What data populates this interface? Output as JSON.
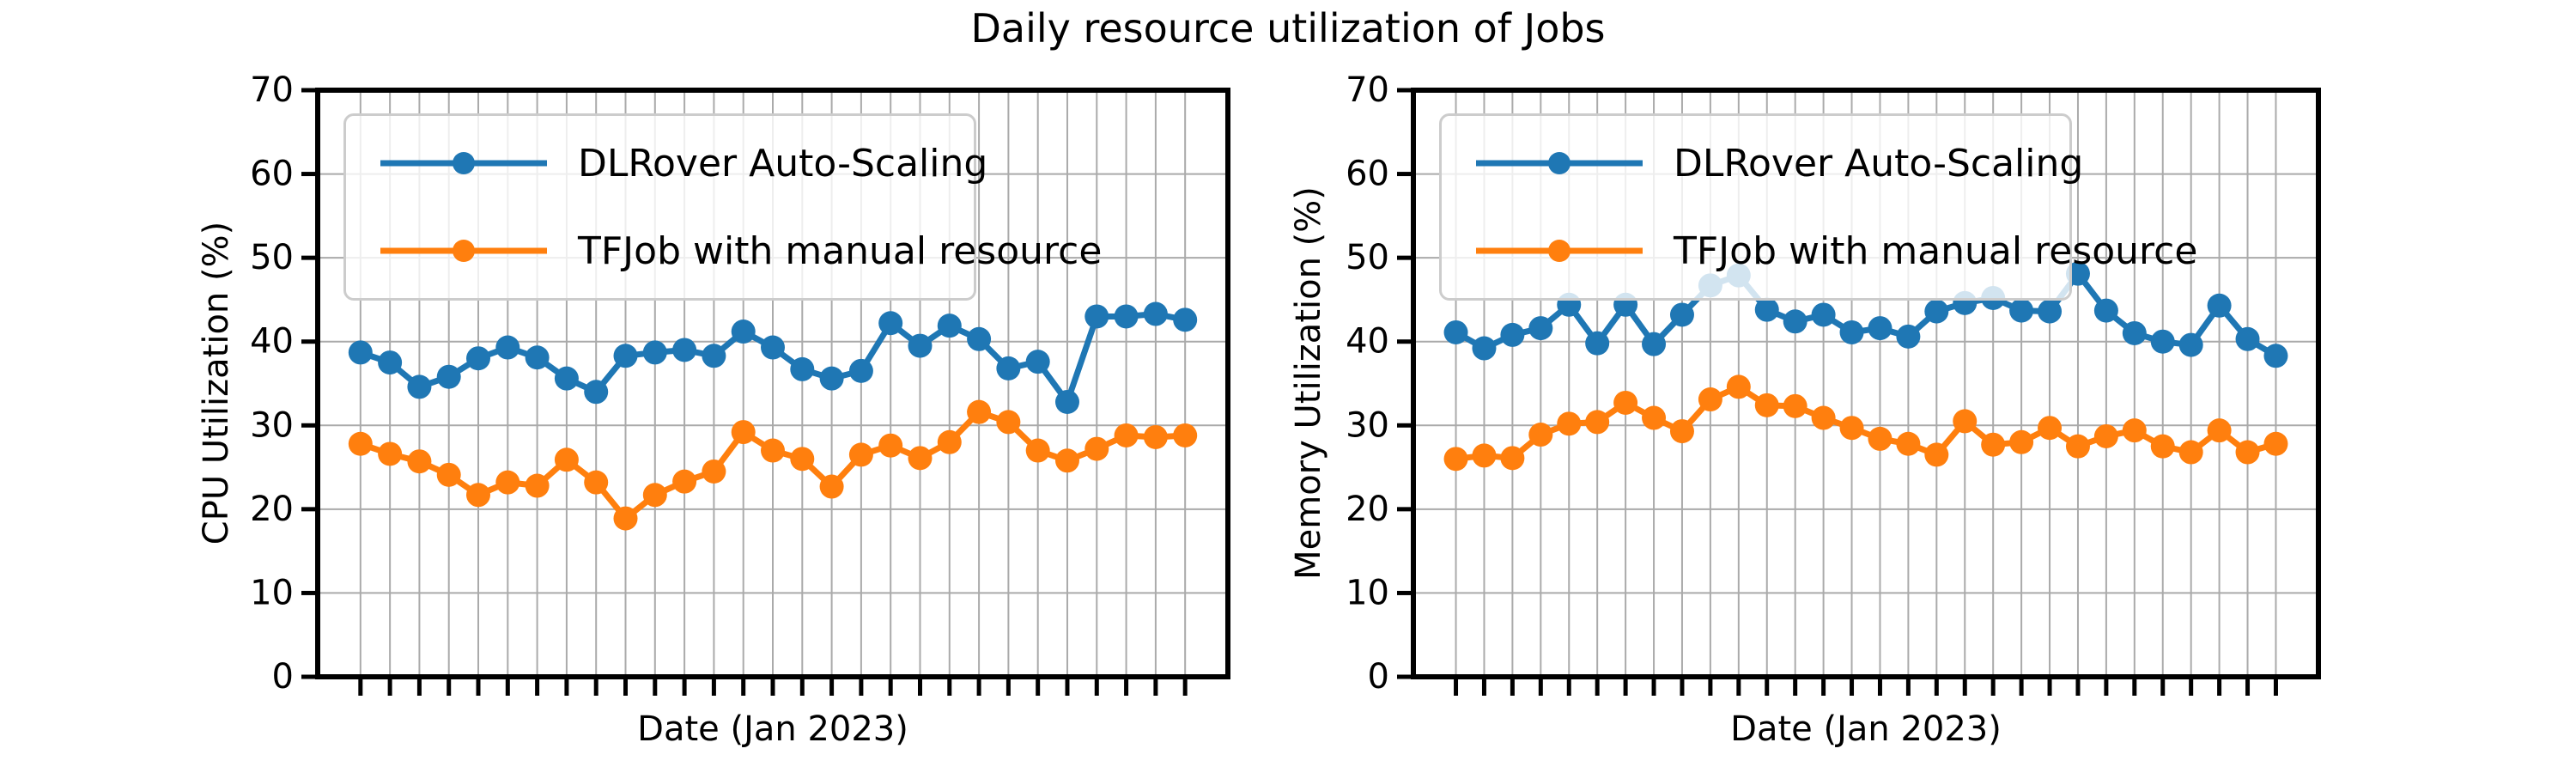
{
  "title": "Daily resource utilization of Jobs",
  "colors": {
    "auto_scaling": "#1f77b4",
    "tfjob": "#ff7f0e",
    "grid": "#aaaaaa",
    "spine": "#000000",
    "legend_border": "#cccccc"
  },
  "chart_data": [
    {
      "type": "line",
      "xlabel": "Date (Jan 2023)",
      "ylabel": "CPU Utilization (%)",
      "ylim": [
        0,
        70
      ],
      "yticks": [
        0,
        10,
        20,
        30,
        40,
        50,
        60,
        70
      ],
      "x_days": [
        1,
        2,
        3,
        4,
        5,
        6,
        7,
        8,
        9,
        10,
        11,
        12,
        13,
        14,
        15,
        16,
        17,
        18,
        19,
        20,
        21,
        22,
        23,
        24,
        25,
        26,
        27,
        28,
        29
      ],
      "grid": true,
      "legend_position": "upper left",
      "series": [
        {
          "name": "DLRover Auto-Scaling",
          "color": "#1f77b4",
          "values": [
            38.7,
            37.5,
            34.6,
            35.8,
            38.0,
            39.3,
            38.1,
            35.6,
            34.0,
            38.3,
            38.7,
            39.0,
            38.3,
            41.2,
            39.3,
            36.7,
            35.6,
            36.5,
            42.2,
            39.5,
            41.9,
            40.3,
            36.8,
            37.6,
            32.8,
            43.0,
            43.0,
            43.3,
            42.6
          ]
        },
        {
          "name": "TFJob with manual resource",
          "color": "#ff7f0e",
          "values": [
            27.8,
            26.6,
            25.7,
            24.1,
            21.7,
            23.2,
            22.8,
            25.9,
            23.2,
            18.9,
            21.7,
            23.3,
            24.5,
            29.2,
            27.0,
            26.0,
            22.7,
            26.5,
            27.6,
            26.1,
            28.0,
            31.6,
            30.4,
            27.0,
            25.8,
            27.2,
            28.8,
            28.6,
            28.8
          ]
        }
      ]
    },
    {
      "type": "line",
      "xlabel": "Date (Jan 2023)",
      "ylabel": "Memory Utilization (%)",
      "ylim": [
        0,
        70
      ],
      "yticks": [
        0,
        10,
        20,
        30,
        40,
        50,
        60,
        70
      ],
      "x_days": [
        1,
        2,
        3,
        4,
        5,
        6,
        7,
        8,
        9,
        10,
        11,
        12,
        13,
        14,
        15,
        16,
        17,
        18,
        19,
        20,
        21,
        22,
        23,
        24,
        25,
        26,
        27,
        28,
        29,
        30
      ],
      "grid": true,
      "legend_position": "upper left",
      "series": [
        {
          "name": "DLRover Auto-Scaling",
          "color": "#1f77b4",
          "values": [
            41.1,
            39.2,
            40.8,
            41.6,
            44.4,
            39.8,
            44.4,
            39.7,
            43.2,
            46.7,
            47.9,
            43.8,
            42.4,
            43.2,
            41.1,
            41.6,
            40.6,
            43.6,
            44.6,
            45.2,
            43.7,
            43.6,
            48.1,
            43.7,
            41.0,
            40.0,
            39.6,
            44.3,
            40.3,
            38.3
          ]
        },
        {
          "name": "TFJob with manual resource",
          "color": "#ff7f0e",
          "values": [
            26.0,
            26.4,
            26.1,
            28.9,
            30.2,
            30.4,
            32.7,
            30.9,
            29.3,
            33.1,
            34.6,
            32.4,
            32.3,
            30.9,
            29.7,
            28.4,
            27.8,
            26.5,
            30.5,
            27.7,
            28.0,
            29.7,
            27.5,
            28.7,
            29.4,
            27.5,
            26.8,
            29.4,
            26.8,
            27.8
          ]
        }
      ]
    }
  ]
}
